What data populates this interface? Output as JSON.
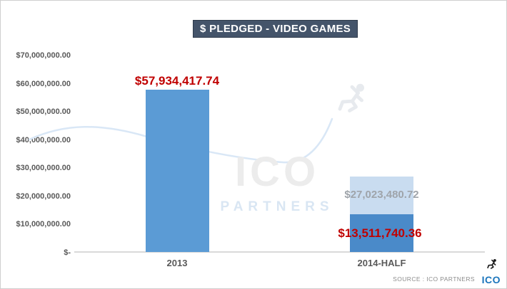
{
  "title": "$ PLEDGED - VIDEO GAMES",
  "watermark": {
    "line1": "ICO",
    "line2": "PARTNERS",
    "icon": "runner-icon"
  },
  "footer": {
    "source_text": "SOURCE : ICO PARTNERS",
    "logo_text": "ICO",
    "logo_icon": "runner-icon"
  },
  "colors": {
    "title_bg": "#44546A",
    "title_text": "#FFFFFF",
    "bar_2013": "#5B9BD5",
    "bar_2014_actual": "#4A8AC9",
    "bar_2014_projected": "#C9DCF0",
    "value_label_red": "#C00000",
    "value_label_gray": "#9FA4AA",
    "axis_text": "#595959",
    "axis_line": "#D9D9D9",
    "watermark_gray": "#ECECEC",
    "watermark_blue": "#D9E6F3",
    "logo_blue": "#1B75BC",
    "source_text": "#8C8C8C"
  },
  "chart_data": {
    "type": "bar",
    "title": "$ PLEDGED - VIDEO GAMES",
    "categories": [
      "2013",
      "2014-HALF"
    ],
    "ylim": [
      0,
      70000000
    ],
    "ytick_step": 10000000,
    "ytick_labels": [
      "$70,000,000.00",
      "$60,000,000.00",
      "$50,000,000.00",
      "$40,000,000.00",
      "$30,000,000.00",
      "$20,000,000.00",
      "$10,000,000.00",
      "$-"
    ],
    "ytick_values": [
      70000000,
      60000000,
      50000000,
      40000000,
      30000000,
      20000000,
      10000000,
      0
    ],
    "grid": false,
    "legend": false,
    "bars": [
      {
        "category": "2013",
        "value": 57934417.74,
        "label": "$57,934,417.74"
      },
      {
        "category": "2014-HALF",
        "actual_value": 13511740.36,
        "actual_label": "$13,511,740.36",
        "projected_total_value": 27023480.72,
        "projected_label": "$27,023,480.72"
      }
    ]
  }
}
